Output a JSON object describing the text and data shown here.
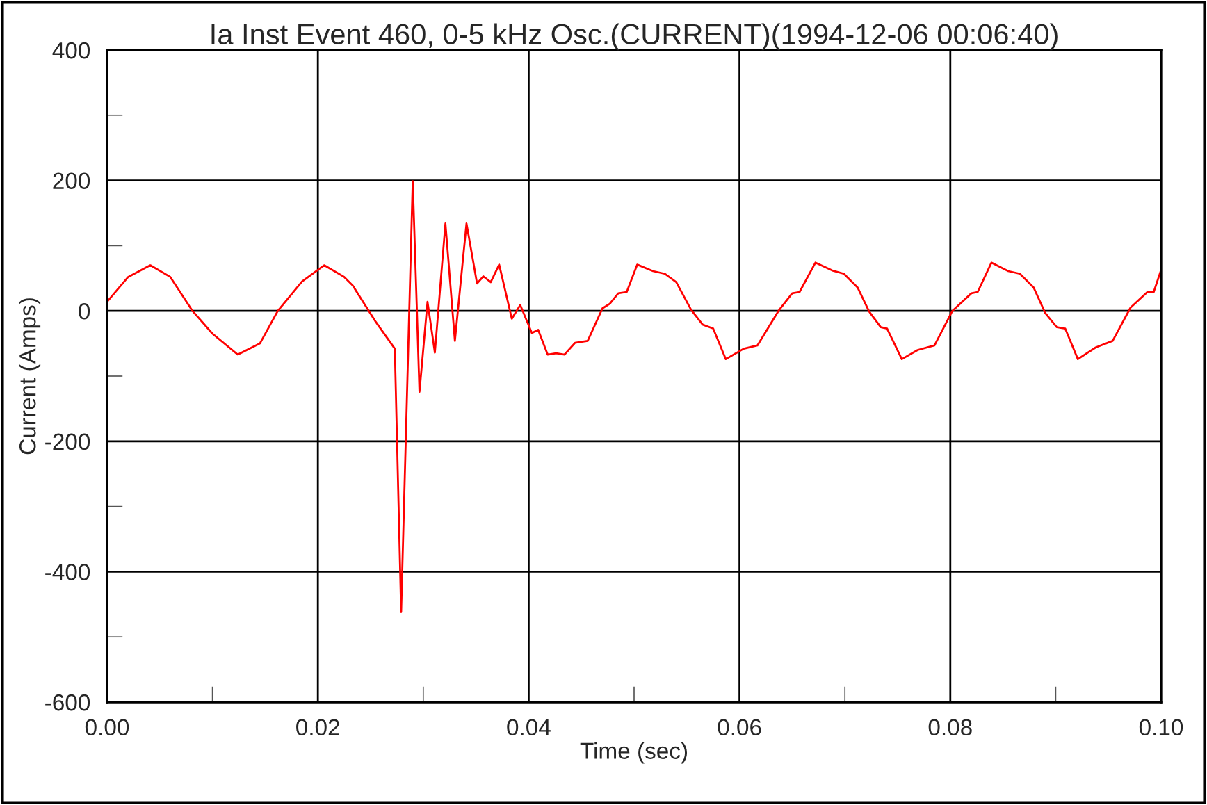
{
  "chart_data": {
    "type": "line",
    "title": "Ia Inst Event 460, 0-5 kHz Osc.(CURRENT)(1994-12-06 00:06:40)",
    "xlabel": "Time (sec)",
    "ylabel": "Current (Amps)",
    "xlim": [
      0,
      0.1
    ],
    "ylim": [
      -600,
      400
    ],
    "xticks": [
      {
        "value": 0,
        "label": "0.00"
      },
      {
        "value": 0.01,
        "label": null
      },
      {
        "value": 0.02,
        "label": "0.02"
      },
      {
        "value": 0.03,
        "label": null
      },
      {
        "value": 0.04,
        "label": "0.04"
      },
      {
        "value": 0.05,
        "label": null
      },
      {
        "value": 0.06,
        "label": "0.06"
      },
      {
        "value": 0.07,
        "label": null
      },
      {
        "value": 0.08,
        "label": "0.08"
      },
      {
        "value": 0.09,
        "label": null
      },
      {
        "value": 0.1,
        "label": "0.10"
      }
    ],
    "yticks": [
      -600,
      {
        "value": -500,
        "label": null
      },
      -400,
      {
        "value": -300,
        "label": null
      },
      -200,
      {
        "value": -100,
        "label": null
      },
      0,
      {
        "value": 100,
        "label": null
      },
      200,
      {
        "value": 300,
        "label": null
      },
      400
    ],
    "grid": true,
    "legend": false,
    "marker": "none",
    "line_style": "solid",
    "series": [
      {
        "color": "#ff0000",
        "x": [
          0,
          0.002,
          0.0041,
          0.006,
          0.0081,
          0.01,
          0.0124,
          0.0145,
          0.0162,
          0.0185,
          0.0206,
          0.0225,
          0.0233,
          0.0255,
          0.0273,
          0.0279,
          0.029,
          0.02964,
          0.0304,
          0.0311,
          0.0321,
          0.033,
          0.0341,
          0.0351,
          0.0357,
          0.0364,
          0.0372,
          0.0384,
          0.0392,
          0.0403,
          0.0409,
          0.0418,
          0.0426,
          0.0434,
          0.0444,
          0.0456,
          0.047,
          0.0477,
          0.0485,
          0.0493,
          0.0503,
          0.0518,
          0.0529,
          0.054,
          0.0554,
          0.0565,
          0.0575,
          0.0587,
          0.0604,
          0.0617,
          0.0637,
          0.065,
          0.0657,
          0.0672,
          0.0688,
          0.0699,
          0.0712,
          0.0723,
          0.0734,
          0.074,
          0.0754,
          0.0769,
          0.0785,
          0.0802,
          0.082,
          0.0826,
          0.0839,
          0.0855,
          0.0866,
          0.0879,
          0.089,
          0.0901,
          0.0909,
          0.0921,
          0.0938,
          0.0954,
          0.0971,
          0.0987,
          0.0993,
          0.1
        ],
        "values": [
          14,
          52,
          70,
          52,
          0,
          -35,
          -67,
          -50,
          0,
          45,
          70,
          52,
          39,
          -17,
          -58,
          -462,
          199,
          -124,
          14,
          -64,
          134,
          -46,
          134,
          42,
          53,
          44,
          71,
          -12,
          9,
          -34,
          -29,
          -67,
          -65,
          -67,
          -49,
          -46,
          4,
          11,
          27,
          29,
          71,
          61,
          57,
          44,
          2,
          -21,
          -27,
          -74,
          -58,
          -53,
          0,
          27,
          29,
          74,
          62,
          57,
          36,
          -1,
          -25,
          -27,
          -74,
          -60,
          -53,
          0,
          27,
          29,
          74,
          61,
          57,
          36,
          -3,
          -25,
          -27,
          -74,
          -56,
          -46,
          5,
          29,
          29,
          63
        ]
      }
    ]
  }
}
